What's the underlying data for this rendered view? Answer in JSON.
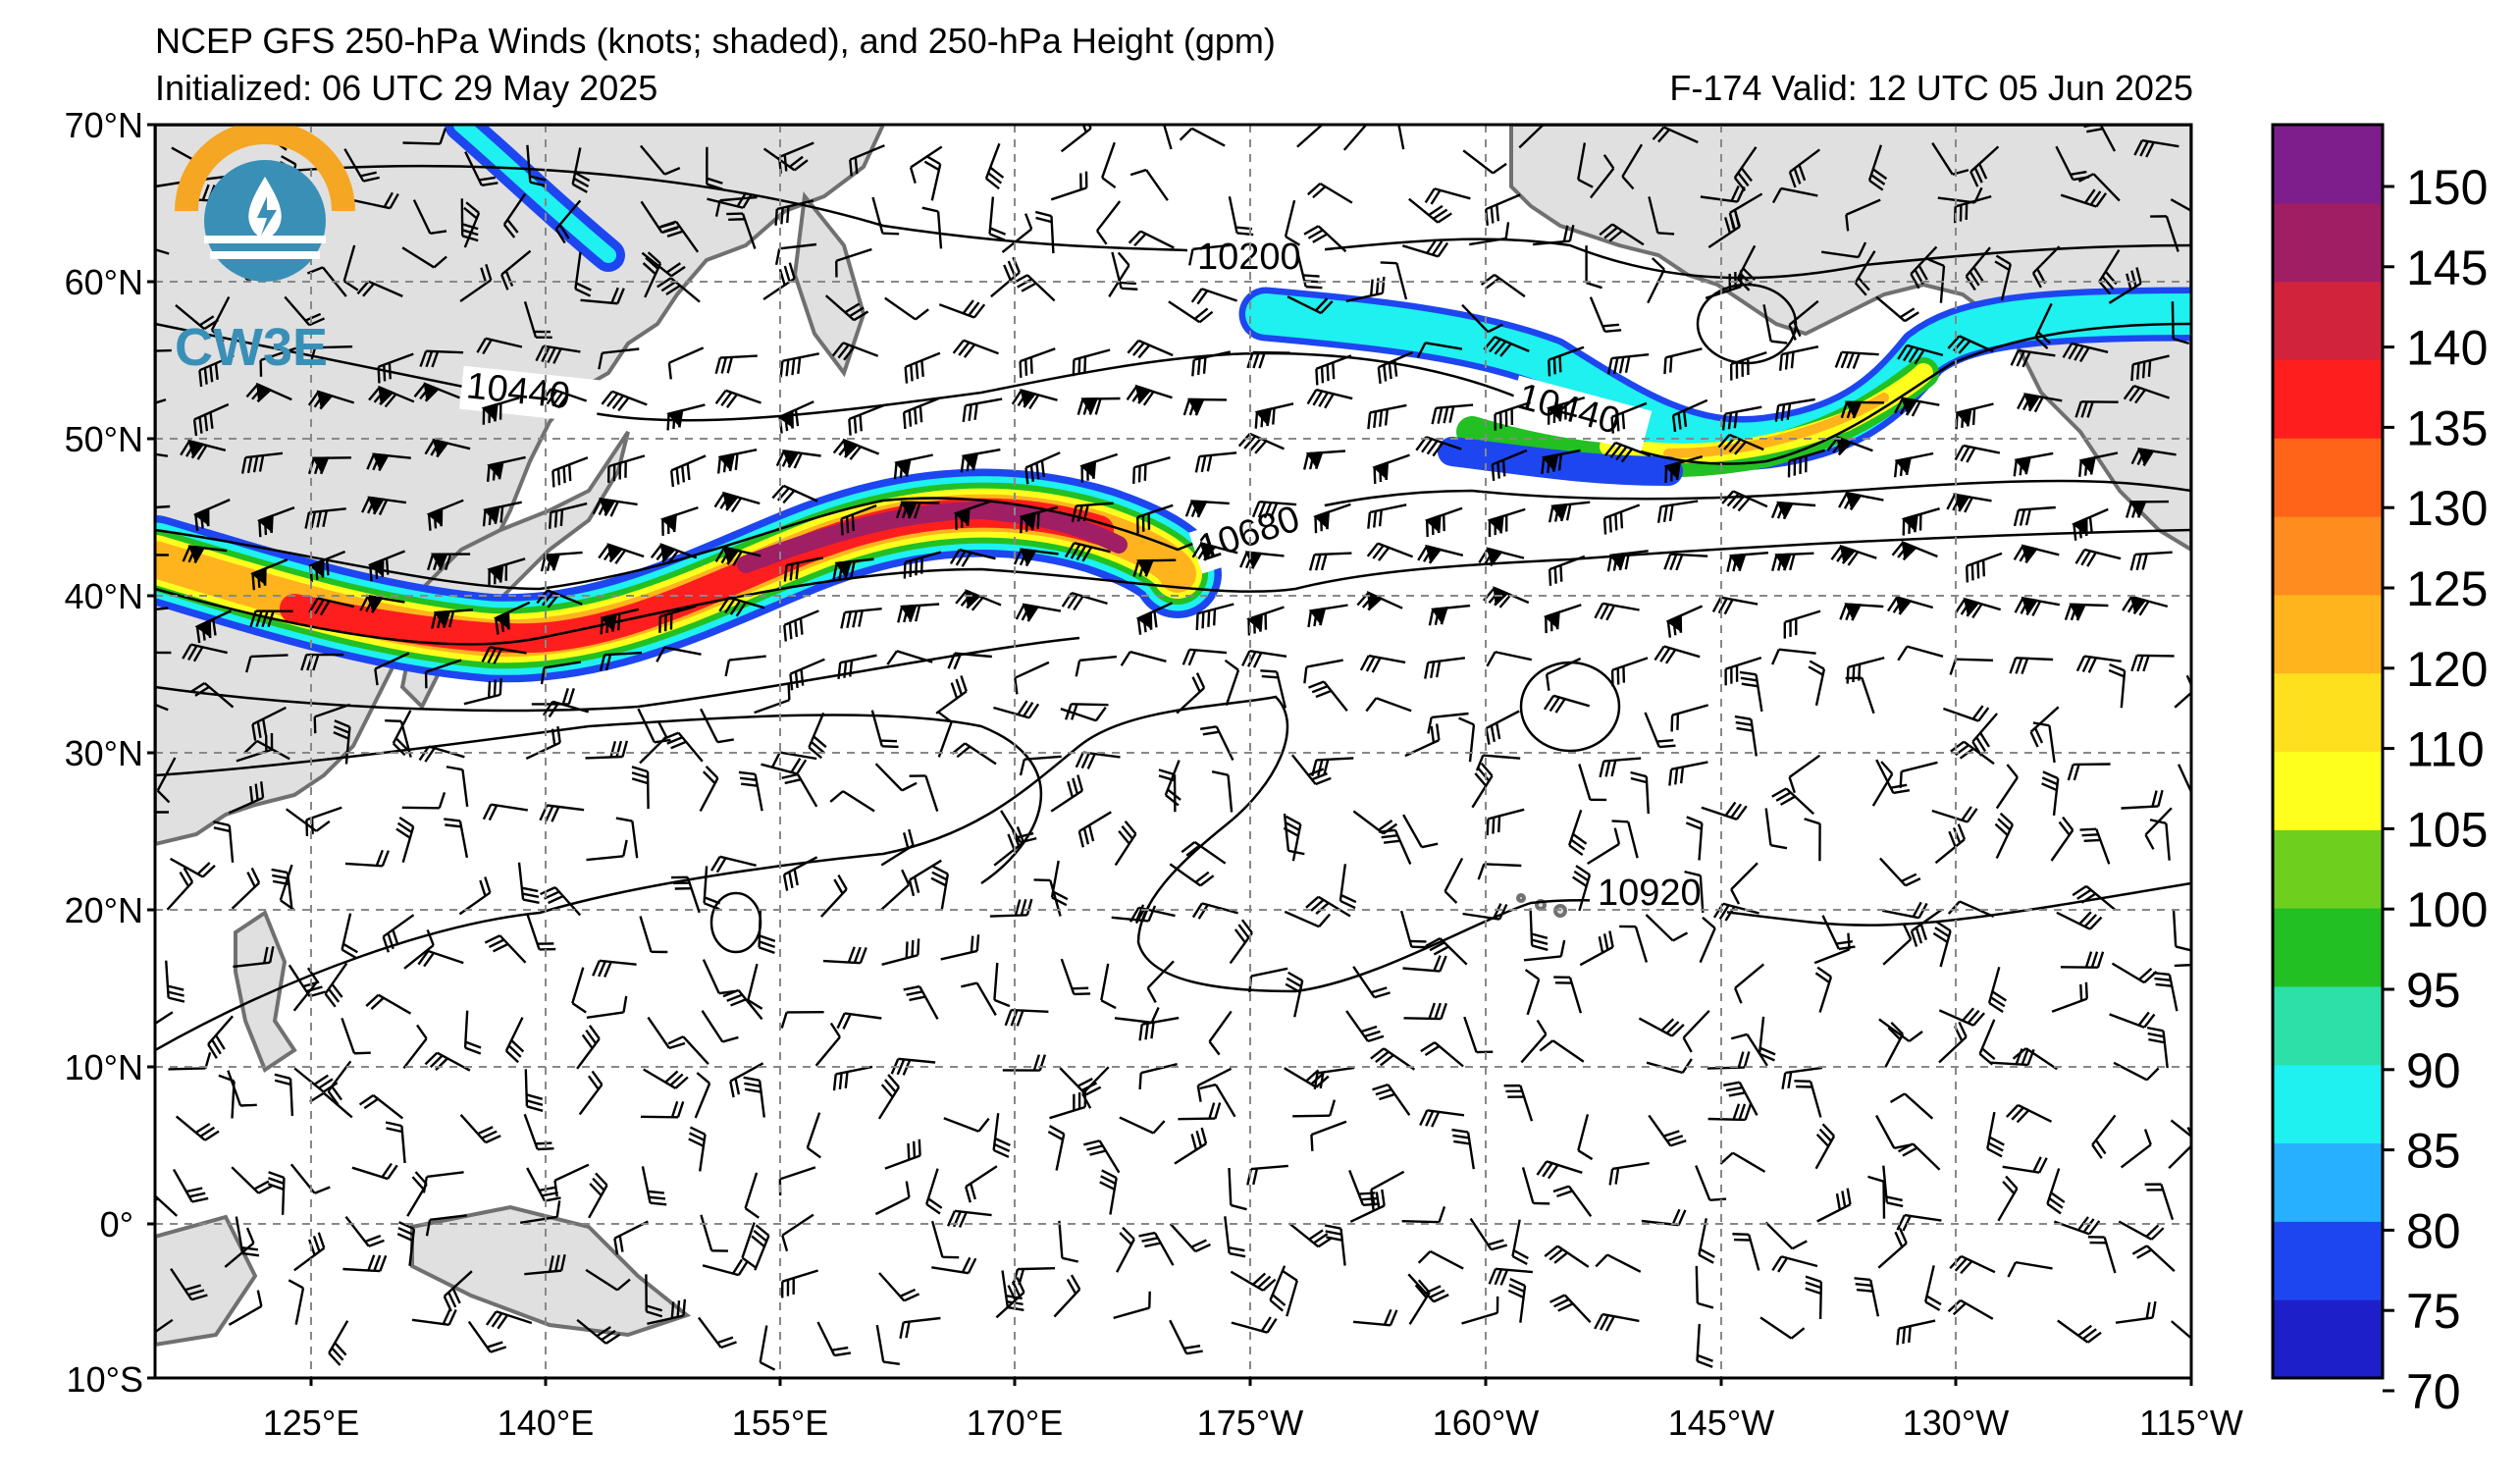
{
  "title": {
    "line1": "NCEP GFS 250-hPa Winds (knots; shaded), and 250-hPa Height (gpm)",
    "line2": "Initialized: 06 UTC 29 May 2025",
    "line3": "F-174  Valid: 12 UTC 05 Jun 2025"
  },
  "logo": {
    "text": "CW3E",
    "name": "cw3e-logo"
  },
  "map": {
    "lat_labels": [
      "70°N",
      "60°N",
      "50°N",
      "40°N",
      "30°N",
      "20°N",
      "10°N",
      "0°",
      "10°S"
    ],
    "lon_labels": [
      "125°E",
      "140°E",
      "155°E",
      "170°E",
      "175°W",
      "160°W",
      "145°W",
      "130°W",
      "115°W"
    ],
    "contour_labels": [
      "10200",
      "10440",
      "10440",
      "10680",
      "10920"
    ],
    "jet_core_max_kt": 150,
    "land_color": "#e0e0e0",
    "coast_color": "#707070"
  },
  "colorbar": {
    "ticks": [
      "150",
      "145",
      "140",
      "135",
      "130",
      "125",
      "120",
      "110",
      "105",
      "100",
      "95",
      "90",
      "85",
      "80",
      "75",
      "70"
    ],
    "colors": [
      "#1d1fc8",
      "#1e46f0",
      "#26b0ff",
      "#1ff0f0",
      "#2de0a8",
      "#22c022",
      "#6fcf1f",
      "#ffff1e",
      "#ffe01e",
      "#ffb41e",
      "#ff8c1e",
      "#ff6419",
      "#ff1e1e",
      "#d2233c",
      "#a01e64",
      "#7d1e8c"
    ]
  }
}
